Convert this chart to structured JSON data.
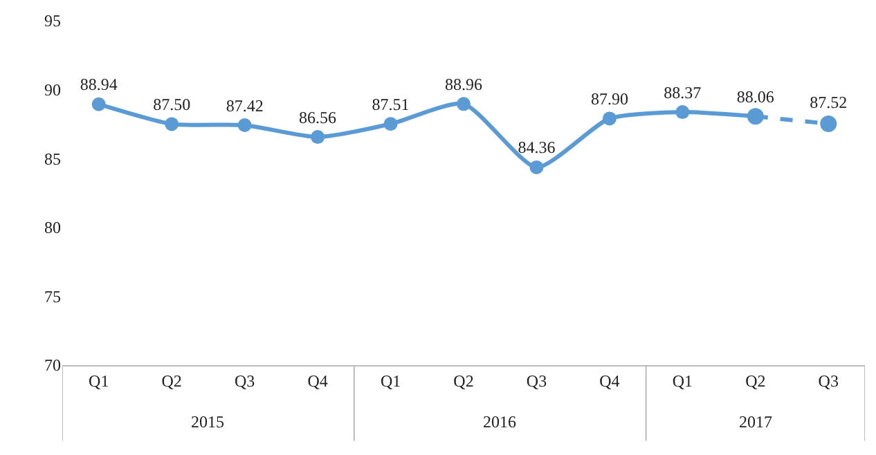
{
  "chart_data": {
    "type": "line",
    "categories": [
      "Q1",
      "Q2",
      "Q3",
      "Q4",
      "Q1",
      "Q2",
      "Q3",
      "Q4",
      "Q1",
      "Q2",
      "Q3"
    ],
    "series": [
      {
        "color": "#5b9bd5",
        "line_style": "solid",
        "values": [
          88.94,
          87.5,
          87.42,
          86.56,
          87.51,
          88.96,
          84.36,
          87.9,
          88.37,
          88.06,
          null
        ],
        "value_labels": [
          "88.94",
          "87.50",
          "87.42",
          "86.56",
          "87.51",
          "88.96",
          "84.36",
          "87.90",
          "88.37",
          "88.06",
          null
        ]
      },
      {
        "color": "#5b9bd5",
        "line_style": "dashed",
        "values": [
          null,
          null,
          null,
          null,
          null,
          null,
          null,
          null,
          null,
          88.06,
          87.52
        ],
        "value_labels": [
          null,
          null,
          null,
          null,
          null,
          null,
          null,
          null,
          null,
          null,
          "87.52"
        ]
      }
    ],
    "annotations": [
      "2015",
      "2016",
      "2017"
    ],
    "ylim": [
      70,
      95
    ],
    "yticks": [
      70,
      75,
      80,
      85,
      90,
      95
    ],
    "marker": "circle",
    "grid": false
  }
}
